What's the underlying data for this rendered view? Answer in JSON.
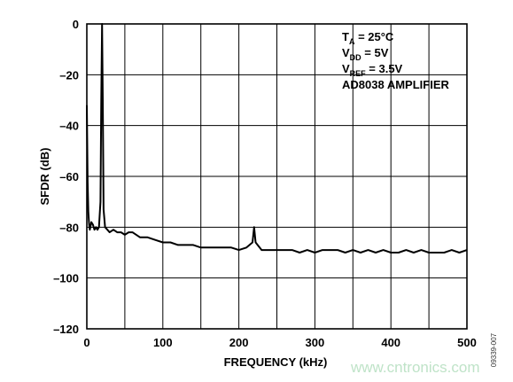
{
  "chart_data": {
    "type": "line",
    "xlabel": "FREQUENCY (kHz)",
    "ylabel": "SFDR (dB)",
    "xlim": [
      0,
      500
    ],
    "ylim": [
      -120,
      0
    ],
    "x_ticks": [
      0,
      100,
      200,
      300,
      400,
      500
    ],
    "y_ticks": [
      0,
      -20,
      -40,
      -60,
      -80,
      -100,
      -120
    ],
    "x_tick_labels": [
      "0",
      "100",
      "200",
      "300",
      "400",
      "500"
    ],
    "y_tick_labels": [
      "0",
      "–20",
      "–40",
      "–60",
      "–80",
      "–100",
      "–120"
    ],
    "grid": true,
    "annotations": [
      {
        "main": "T",
        "sub": "A",
        "rest": " = 25°C"
      },
      {
        "main": "V",
        "sub": "DD",
        "rest": " = 5V"
      },
      {
        "main": "V",
        "sub": "REF",
        "rest": " = 3.5V"
      },
      {
        "main": "AD8038 AMPLIFIER",
        "sub": "",
        "rest": ""
      }
    ],
    "annotation_placement": "top-right",
    "figure_id": "09339-007",
    "line_color": "#000000",
    "series": [
      {
        "x": [
          0,
          1,
          2,
          3,
          4,
          6,
          8,
          10,
          12,
          14,
          16,
          18,
          19,
          20,
          21,
          22,
          24,
          27,
          30,
          35,
          40,
          45,
          50,
          55,
          60,
          70,
          80,
          90,
          100,
          110,
          120,
          130,
          140,
          150,
          160,
          170,
          180,
          190,
          200,
          210,
          218,
          220,
          222,
          230,
          240,
          250,
          260,
          270,
          280,
          290,
          300,
          310,
          320,
          330,
          340,
          350,
          360,
          370,
          380,
          390,
          400,
          410,
          420,
          430,
          440,
          450,
          460,
          470,
          480,
          490,
          500
        ],
        "y": [
          -32,
          -62,
          -74,
          -79,
          -81,
          -78,
          -79,
          -81,
          -80,
          -81,
          -80,
          -70,
          -30,
          0,
          -30,
          -73,
          -80,
          -81,
          -82,
          -81,
          -82,
          -82,
          -83,
          -82,
          -82,
          -84,
          -84,
          -85,
          -86,
          -86,
          -87,
          -87,
          -87,
          -88,
          -88,
          -88,
          -88,
          -88,
          -89,
          -88,
          -86,
          -80,
          -86,
          -89,
          -89,
          -89,
          -89,
          -89,
          -90,
          -89,
          -90,
          -89,
          -89,
          -89,
          -90,
          -89,
          -90,
          -89,
          -90,
          -89,
          -90,
          -90,
          -89,
          -90,
          -89,
          -90,
          -90,
          -90,
          -89,
          -90,
          -89
        ]
      }
    ]
  },
  "watermark": "www.cntronics.com"
}
